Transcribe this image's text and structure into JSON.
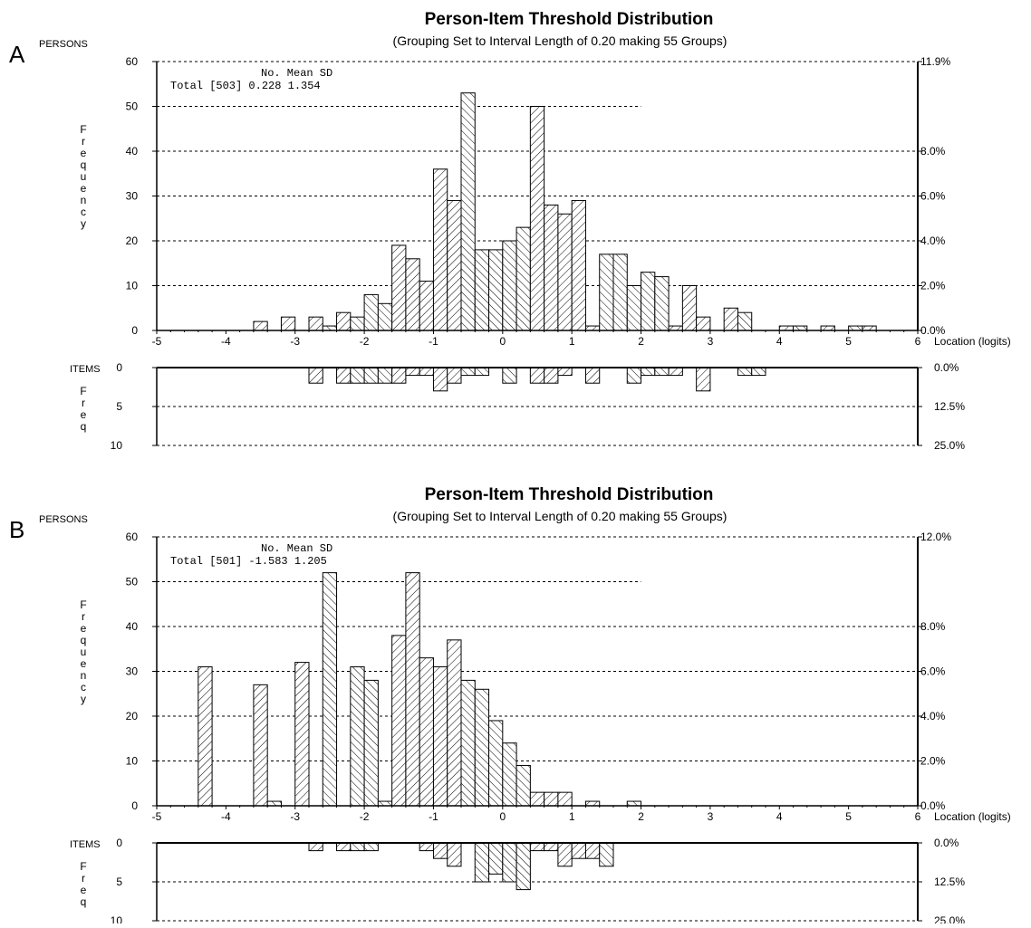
{
  "chart_data": [
    {
      "panel_letter": "A",
      "type": "bar",
      "title": "Person-Item Threshold Distribution",
      "subtitle": "(Grouping Set to Interval Length of  0.20  making  55  Groups)",
      "persons_label": "PERSONS",
      "items_label": "ITEMS",
      "ylabel": "Frequency",
      "items_ylabel": "Freq",
      "xlabel": "Location (logits)",
      "xlim": [
        -5,
        6
      ],
      "ylim": [
        0,
        60
      ],
      "items_ylim": [
        0,
        10
      ],
      "xticks": [
        "-5",
        "-4",
        "-3",
        "-2",
        "-1",
        "0",
        "1",
        "2",
        "3",
        "4",
        "5",
        "6"
      ],
      "yticks": [
        "0",
        "10",
        "20",
        "30",
        "40",
        "50",
        "60"
      ],
      "items_yticks": [
        "0",
        "5",
        "10"
      ],
      "right_pct_labels": [
        "0.0%",
        "2.0%",
        "4.0%",
        "6.0%",
        "8.0%",
        "11.9%"
      ],
      "items_pct_labels": [
        "0.0%",
        "12.5%",
        "25.0%"
      ],
      "stats": {
        "header": "No.   Mean     SD",
        "total": "Total   [503]  0.228  1.354"
      },
      "persons": {
        "x": [
          -3.5,
          -3.1,
          -2.7,
          -2.5,
          -2.3,
          -2.1,
          -1.9,
          -1.7,
          -1.5,
          -1.3,
          -1.1,
          -0.9,
          -0.7,
          -0.5,
          -0.3,
          -0.1,
          0.1,
          0.3,
          0.5,
          0.7,
          0.9,
          1.1,
          1.3,
          1.5,
          1.7,
          1.9,
          2.1,
          2.3,
          2.5,
          2.7,
          2.9,
          3.3,
          3.5,
          4.1,
          4.3,
          4.7,
          5.1,
          5.3
        ],
        "values": [
          2,
          3,
          3,
          1,
          4,
          3,
          8,
          6,
          19,
          16,
          11,
          36,
          29,
          53,
          18,
          18,
          20,
          23,
          50,
          28,
          26,
          29,
          1,
          17,
          17,
          10,
          13,
          12,
          1,
          10,
          3,
          5,
          4,
          1,
          1,
          1,
          1,
          1
        ]
      },
      "items": {
        "x": [
          -2.7,
          -2.3,
          -2.1,
          -1.9,
          -1.7,
          -1.5,
          -1.3,
          -1.1,
          -0.9,
          -0.7,
          -0.5,
          -0.3,
          0.1,
          0.5,
          0.7,
          0.9,
          1.3,
          1.9,
          2.1,
          2.3,
          2.5,
          2.9,
          3.5,
          3.7
        ],
        "values": [
          2,
          2,
          2,
          2,
          2,
          2,
          1,
          1,
          3,
          2,
          1,
          1,
          2,
          2,
          2,
          1,
          2,
          2,
          1,
          1,
          1,
          3,
          1,
          1
        ]
      }
    },
    {
      "panel_letter": "B",
      "type": "bar",
      "title": "Person-Item Threshold Distribution",
      "subtitle": "(Grouping Set to Interval Length of  0.20  making  55  Groups)",
      "persons_label": "PERSONS",
      "items_label": "ITEMS",
      "ylabel": "Frequency",
      "items_ylabel": "Freq",
      "xlabel": "Location (logits)",
      "xlim": [
        -5,
        6
      ],
      "ylim": [
        0,
        60
      ],
      "items_ylim": [
        0,
        10
      ],
      "xticks": [
        "-5",
        "-4",
        "-3",
        "-2",
        "-1",
        "0",
        "1",
        "2",
        "3",
        "4",
        "5",
        "6"
      ],
      "yticks": [
        "0",
        "10",
        "20",
        "30",
        "40",
        "50",
        "60"
      ],
      "items_yticks": [
        "0",
        "5",
        "10"
      ],
      "right_pct_labels": [
        "0.0%",
        "2.0%",
        "4.0%",
        "6.0%",
        "8.0%",
        "12.0%"
      ],
      "items_pct_labels": [
        "0.0%",
        "12.5%",
        "25.0%"
      ],
      "stats": {
        "header": "No.   Mean     SD",
        "total": "Total   [501] -1.583  1.205"
      },
      "persons": {
        "x": [
          -4.3,
          -3.5,
          -3.3,
          -2.9,
          -2.5,
          -2.1,
          -1.9,
          -1.7,
          -1.5,
          -1.3,
          -1.1,
          -0.9,
          -0.7,
          -0.5,
          -0.3,
          -0.1,
          0.1,
          0.3,
          0.5,
          0.7,
          0.9,
          1.3,
          1.9
        ],
        "values": [
          31,
          27,
          1,
          32,
          52,
          31,
          28,
          1,
          38,
          52,
          33,
          31,
          37,
          28,
          26,
          19,
          14,
          9,
          3,
          3,
          3,
          1,
          1
        ]
      },
      "items": {
        "x": [
          -2.7,
          -2.3,
          -2.1,
          -1.9,
          -1.1,
          -0.9,
          -0.7,
          -0.3,
          -0.1,
          0.1,
          0.3,
          0.5,
          0.7,
          0.9,
          1.1,
          1.3,
          1.5
        ],
        "values": [
          1,
          1,
          1,
          1,
          1,
          2,
          3,
          5,
          4,
          5,
          6,
          1,
          1,
          3,
          2,
          2,
          3
        ]
      }
    }
  ]
}
